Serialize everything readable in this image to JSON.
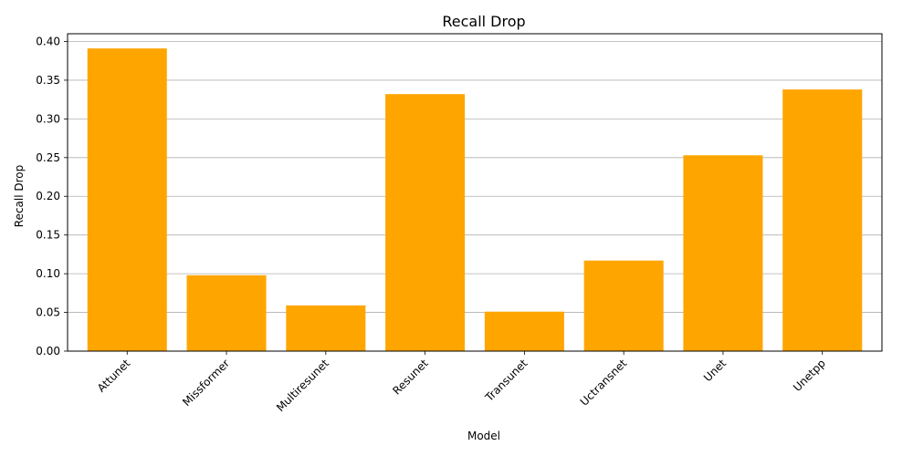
{
  "colors": {
    "bar": "#ffa500",
    "grid": "#b0b0b0",
    "axis": "#000000"
  },
  "chart_data": {
    "type": "bar",
    "title": "Recall Drop",
    "xlabel": "Model",
    "ylabel": "Recall Drop",
    "categories": [
      "Attunet",
      "Missformer",
      "Multiresunet",
      "Resunet",
      "Transunet",
      "Uctransnet",
      "Unet",
      "Unetpp"
    ],
    "values": [
      0.391,
      0.098,
      0.059,
      0.332,
      0.051,
      0.117,
      0.253,
      0.338
    ],
    "ylim": [
      0.0,
      0.41
    ],
    "yticks": [
      "0.00",
      "0.05",
      "0.10",
      "0.15",
      "0.20",
      "0.25",
      "0.30",
      "0.35",
      "0.40"
    ],
    "grid": "y-major",
    "legend": "none"
  }
}
